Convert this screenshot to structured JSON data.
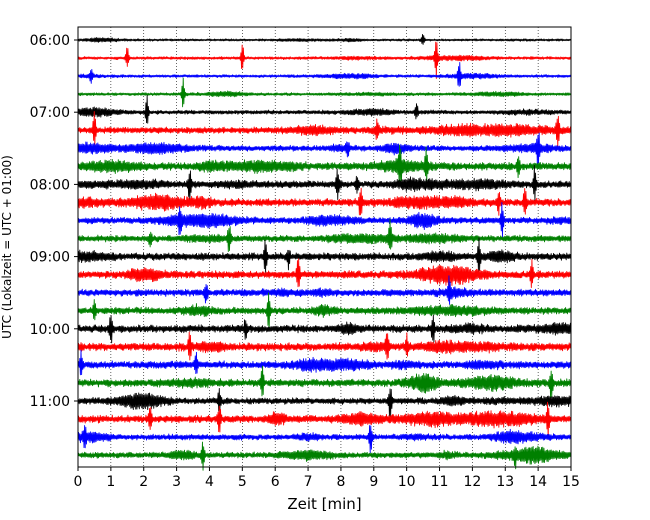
{
  "chart_data": {
    "type": "line",
    "title": "",
    "xlabel": "Zeit  [min]",
    "ylabel": "UTC (Lokalzeit = UTC + 01:00)",
    "xlim": [
      0,
      15
    ],
    "x_ticks": [
      0,
      1,
      2,
      3,
      4,
      5,
      6,
      7,
      8,
      9,
      10,
      11,
      12,
      13,
      14,
      15
    ],
    "x_tick_labels": [
      "0",
      "1",
      "2",
      "3",
      "4",
      "5",
      "6",
      "7",
      "8",
      "9",
      "10",
      "11",
      "12",
      "13",
      "14",
      "15"
    ],
    "y_tick_labels": [
      "06:00",
      "07:00",
      "08:00",
      "09:00",
      "10:00",
      "11:00"
    ],
    "grid": "vertical dotted lines at each minute",
    "trace_start_time": "06:00",
    "trace_interval_minutes": 15,
    "trace_count": 24,
    "trace_colors": [
      "#000000",
      "#ff0000",
      "#0000ff",
      "#008000"
    ],
    "series": [
      {
        "start": "06:00",
        "color": "#000000",
        "amplitude": 0.4,
        "spikes": [
          [
            10.5,
            0.6
          ]
        ]
      },
      {
        "start": "06:15",
        "color": "#ff0000",
        "amplitude": 0.5,
        "spikes": [
          [
            1.5,
            1.2
          ],
          [
            5.0,
            1.4
          ],
          [
            10.9,
            1.8
          ]
        ]
      },
      {
        "start": "06:30",
        "color": "#0000ff",
        "amplitude": 0.5,
        "spikes": [
          [
            0.4,
            0.6
          ],
          [
            11.6,
            1.5
          ]
        ]
      },
      {
        "start": "06:45",
        "color": "#008000",
        "amplitude": 0.5,
        "spikes": [
          [
            3.2,
            1.8
          ]
        ]
      },
      {
        "start": "07:00",
        "color": "#000000",
        "amplitude": 0.7,
        "spikes": [
          [
            2.1,
            1.6
          ],
          [
            10.3,
            0.8
          ]
        ]
      },
      {
        "start": "07:15",
        "color": "#ff0000",
        "amplitude": 1.1,
        "spikes": [
          [
            0.5,
            1.8
          ],
          [
            9.1,
            1.0
          ],
          [
            14.6,
            1.8
          ]
        ]
      },
      {
        "start": "07:30",
        "color": "#0000ff",
        "amplitude": 1.0,
        "spikes": [
          [
            8.2,
            0.8
          ],
          [
            14.0,
            1.6
          ]
        ]
      },
      {
        "start": "07:45",
        "color": "#008000",
        "amplitude": 1.3,
        "spikes": [
          [
            9.8,
            1.6
          ],
          [
            10.6,
            1.6
          ],
          [
            13.4,
            0.9
          ]
        ]
      },
      {
        "start": "08:00",
        "color": "#000000",
        "amplitude": 1.2,
        "spikes": [
          [
            3.4,
            1.8
          ],
          [
            7.9,
            1.5
          ],
          [
            8.5,
            1.0
          ],
          [
            13.9,
            1.8
          ]
        ]
      },
      {
        "start": "08:15",
        "color": "#ff0000",
        "amplitude": 1.3,
        "spikes": [
          [
            8.6,
            1.8
          ],
          [
            12.8,
            1.0
          ],
          [
            13.6,
            1.8
          ]
        ]
      },
      {
        "start": "08:30",
        "color": "#0000ff",
        "amplitude": 1.1,
        "spikes": [
          [
            3.1,
            1.6
          ],
          [
            12.9,
            1.6
          ]
        ]
      },
      {
        "start": "08:45",
        "color": "#008000",
        "amplitude": 1.1,
        "spikes": [
          [
            2.2,
            0.7
          ],
          [
            4.6,
            1.6
          ],
          [
            9.5,
            1.6
          ]
        ]
      },
      {
        "start": "09:00",
        "color": "#000000",
        "amplitude": 1.3,
        "spikes": [
          [
            5.7,
            1.6
          ],
          [
            12.2,
            1.6
          ],
          [
            6.4,
            1.0
          ]
        ]
      },
      {
        "start": "09:15",
        "color": "#ff0000",
        "amplitude": 1.3,
        "spikes": [
          [
            6.7,
            1.6
          ],
          [
            13.8,
            1.4
          ]
        ]
      },
      {
        "start": "09:30",
        "color": "#0000ff",
        "amplitude": 1.2,
        "spikes": [
          [
            3.9,
            1.1
          ],
          [
            11.3,
            1.4
          ]
        ]
      },
      {
        "start": "09:45",
        "color": "#008000",
        "amplitude": 1.2,
        "spikes": [
          [
            0.5,
            0.9
          ],
          [
            5.8,
            1.8
          ]
        ]
      },
      {
        "start": "10:00",
        "color": "#000000",
        "amplitude": 1.3,
        "spikes": [
          [
            1.0,
            1.6
          ],
          [
            5.1,
            1.0
          ],
          [
            10.8,
            1.6
          ]
        ]
      },
      {
        "start": "10:15",
        "color": "#ff0000",
        "amplitude": 1.4,
        "spikes": [
          [
            3.4,
            1.8
          ],
          [
            9.4,
            1.6
          ],
          [
            10.0,
            1.0
          ]
        ]
      },
      {
        "start": "10:30",
        "color": "#0000ff",
        "amplitude": 1.3,
        "spikes": [
          [
            0.1,
            1.4
          ],
          [
            3.6,
            1.0
          ]
        ]
      },
      {
        "start": "10:45",
        "color": "#008000",
        "amplitude": 1.3,
        "spikes": [
          [
            5.6,
            1.6
          ],
          [
            14.4,
            1.6
          ]
        ]
      },
      {
        "start": "11:00",
        "color": "#000000",
        "amplitude": 1.1,
        "spikes": [
          [
            4.3,
            1.1
          ],
          [
            9.5,
            1.6
          ]
        ]
      },
      {
        "start": "11:15",
        "color": "#ff0000",
        "amplitude": 1.3,
        "spikes": [
          [
            2.2,
            1.3
          ],
          [
            4.3,
            1.6
          ],
          [
            14.3,
            1.6
          ]
        ]
      },
      {
        "start": "11:30",
        "color": "#0000ff",
        "amplitude": 1.0,
        "spikes": [
          [
            0.2,
            0.8
          ],
          [
            8.9,
            1.6
          ]
        ]
      },
      {
        "start": "11:45",
        "color": "#008000",
        "amplitude": 1.0,
        "spikes": [
          [
            3.8,
            1.4
          ],
          [
            13.3,
            0.8
          ]
        ]
      }
    ]
  }
}
